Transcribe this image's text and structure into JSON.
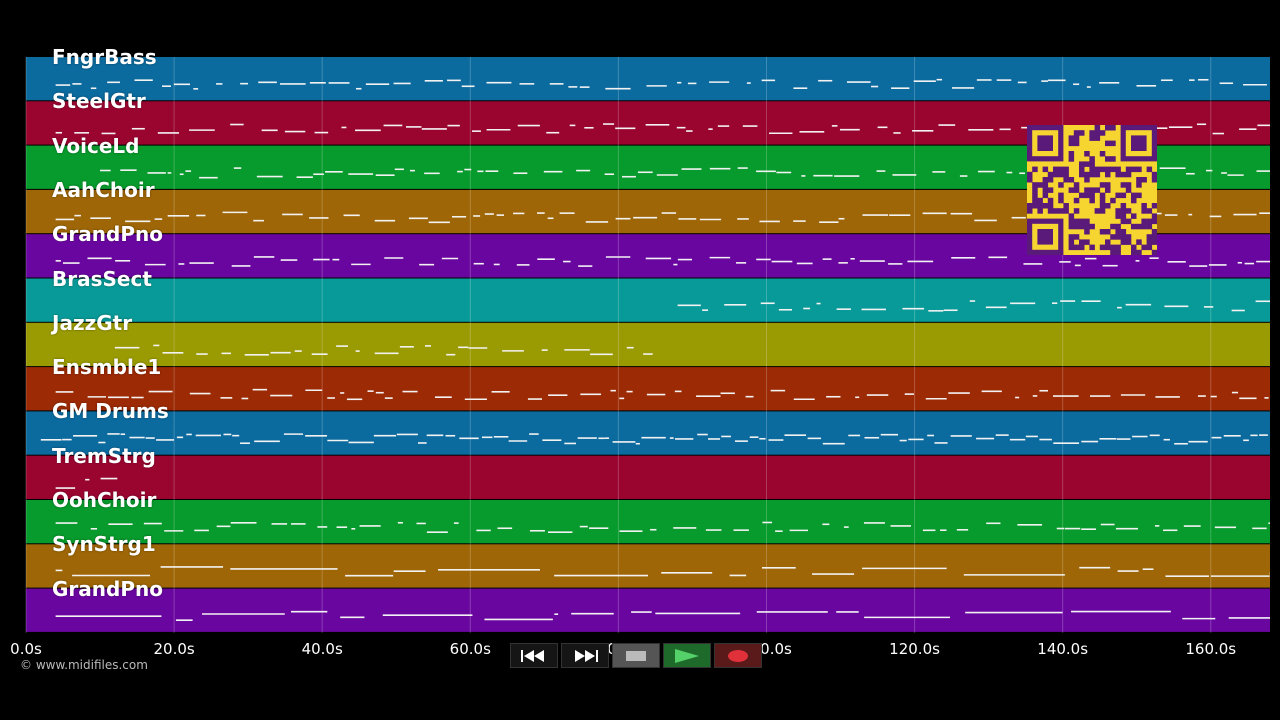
{
  "tracks": [
    {
      "name": "FngrBass",
      "color": "#0b6a9e"
    },
    {
      "name": "SteelGtr",
      "color": "#9a0530"
    },
    {
      "name": "VoiceLd",
      "color": "#079a2c"
    },
    {
      "name": "AahChoir",
      "color": "#9e6606"
    },
    {
      "name": "GrandPno",
      "color": "#6a06a0"
    },
    {
      "name": "BrasSect",
      "color": "#089a98"
    },
    {
      "name": "JazzGtr",
      "color": "#9a9a02"
    },
    {
      "name": "Ensmble1",
      "color": "#9c2a04"
    },
    {
      "name": "GM Drums",
      "color": "#0b6a9e"
    },
    {
      "name": "TremStrg",
      "color": "#9a0530"
    },
    {
      "name": "OohChoir",
      "color": "#079a2c"
    },
    {
      "name": "SynStrg1",
      "color": "#9e6606"
    },
    {
      "name": "GrandPno",
      "color": "#6a06a0"
    }
  ],
  "timeline": {
    "ticks": [
      "0.0s",
      "20.0s",
      "40.0s",
      "60.0s",
      "80.0s",
      "100.0s",
      "120.0s",
      "140.0s",
      "160.0s"
    ],
    "seconds": [
      0,
      20,
      40,
      60,
      80,
      100,
      120,
      140,
      160
    ],
    "max_seconds": 168
  },
  "copyright": "© www.midifiles.com",
  "transport": {
    "rewind": "rewind-icon",
    "fast_forward": "fast-forward-icon",
    "stop": "stop-icon",
    "play": "play-icon",
    "record": "record-icon"
  },
  "qr_color": "#f7d531"
}
